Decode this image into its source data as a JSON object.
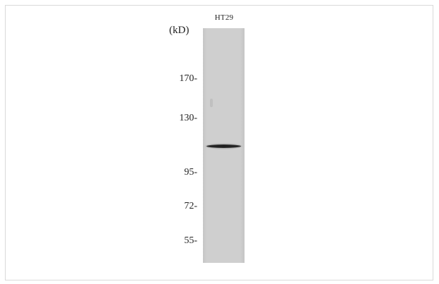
{
  "blot": {
    "lane_label": "HT29",
    "unit_label": "(kD)",
    "markers": [
      {
        "label": "170-",
        "kd": 170
      },
      {
        "label": "130-",
        "kd": 130
      },
      {
        "label": "95-",
        "kd": 95
      },
      {
        "label": "72-",
        "kd": 72
      },
      {
        "label": "55-",
        "kd": 55
      }
    ],
    "band": {
      "approx_kd": 112
    }
  }
}
